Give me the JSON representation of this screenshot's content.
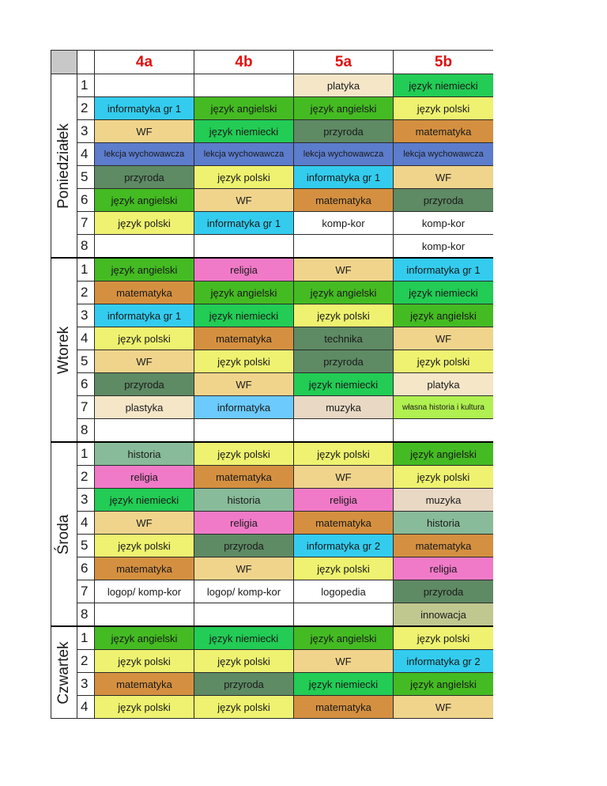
{
  "columns": [
    "4a",
    "4b",
    "5a",
    "5b"
  ],
  "colors": {
    "platyka": "#f5e6c8",
    "niemiecki": "#22cc55",
    "informatyka": "#33ccee",
    "angielski": "#44bb22",
    "polski": "#eef270",
    "wf": "#f0d48c",
    "przyroda": "#5e8a64",
    "matematyka": "#d49040",
    "wychowawcza": "#5c7ccc",
    "religia": "#f07ac8",
    "technika": "#5e8a64",
    "plastyka": "#f5e6c8",
    "informatyka_plain": "#6ccafc",
    "muzyka": "#e8d8c4",
    "wlasna": "#b0f050",
    "historia": "#88bb99",
    "innowacja": "#c0c890"
  },
  "days": [
    {
      "name": "Poniedziałek",
      "rows": [
        {
          "n": "1",
          "cells": [
            {
              "t": "",
              "c": ""
            },
            {
              "t": "",
              "c": ""
            },
            {
              "t": "platyka",
              "c": "platyka"
            },
            {
              "t": "język niemiecki",
              "c": "niemiecki"
            }
          ]
        },
        {
          "n": "2",
          "cells": [
            {
              "t": "informatyka gr 1",
              "c": "informatyka"
            },
            {
              "t": "język angielski",
              "c": "angielski"
            },
            {
              "t": "język angielski",
              "c": "angielski"
            },
            {
              "t": "język polski",
              "c": "polski"
            }
          ]
        },
        {
          "n": "3",
          "cells": [
            {
              "t": "WF",
              "c": "wf"
            },
            {
              "t": "język niemiecki",
              "c": "niemiecki"
            },
            {
              "t": "przyroda",
              "c": "przyroda"
            },
            {
              "t": "matematyka",
              "c": "matematyka"
            }
          ]
        },
        {
          "n": "4",
          "cells": [
            {
              "t": "lekcja wychowawcza",
              "c": "wychowawcza",
              "s": "small"
            },
            {
              "t": "lekcja wychowawcza",
              "c": "wychowawcza",
              "s": "small"
            },
            {
              "t": "lekcja wychowawcza",
              "c": "wychowawcza",
              "s": "small"
            },
            {
              "t": "lekcja wychowawcza",
              "c": "wychowawcza",
              "s": "small"
            }
          ]
        },
        {
          "n": "5",
          "cells": [
            {
              "t": "przyroda",
              "c": "przyroda"
            },
            {
              "t": "język polski",
              "c": "polski"
            },
            {
              "t": "informatyka gr 1",
              "c": "informatyka"
            },
            {
              "t": "WF",
              "c": "wf"
            }
          ]
        },
        {
          "n": "6",
          "cells": [
            {
              "t": "język angielski",
              "c": "angielski"
            },
            {
              "t": "WF",
              "c": "wf"
            },
            {
              "t": "matematyka",
              "c": "matematyka"
            },
            {
              "t": "przyroda",
              "c": "przyroda"
            }
          ]
        },
        {
          "n": "7",
          "cells": [
            {
              "t": "język polski",
              "c": "polski"
            },
            {
              "t": "informatyka gr 1",
              "c": "informatyka"
            },
            {
              "t": "komp-kor",
              "c": ""
            },
            {
              "t": "komp-kor",
              "c": ""
            }
          ]
        },
        {
          "n": "8",
          "cells": [
            {
              "t": "",
              "c": ""
            },
            {
              "t": "",
              "c": ""
            },
            {
              "t": "",
              "c": ""
            },
            {
              "t": "komp-kor",
              "c": ""
            }
          ]
        }
      ]
    },
    {
      "name": "Wtorek",
      "rows": [
        {
          "n": "1",
          "cells": [
            {
              "t": "język angielski",
              "c": "angielski"
            },
            {
              "t": "religia",
              "c": "religia"
            },
            {
              "t": "WF",
              "c": "wf"
            },
            {
              "t": "informatyka gr 1",
              "c": "informatyka"
            }
          ]
        },
        {
          "n": "2",
          "cells": [
            {
              "t": "matematyka",
              "c": "matematyka"
            },
            {
              "t": "język angielski",
              "c": "angielski"
            },
            {
              "t": "język angielski",
              "c": "angielski"
            },
            {
              "t": "język niemiecki",
              "c": "niemiecki"
            }
          ]
        },
        {
          "n": "3",
          "cells": [
            {
              "t": "informatyka gr 1",
              "c": "informatyka"
            },
            {
              "t": "język niemiecki",
              "c": "niemiecki"
            },
            {
              "t": "język polski",
              "c": "polski"
            },
            {
              "t": "język angielski",
              "c": "angielski"
            }
          ]
        },
        {
          "n": "4",
          "cells": [
            {
              "t": "język polski",
              "c": "polski"
            },
            {
              "t": "matematyka",
              "c": "matematyka"
            },
            {
              "t": "technika",
              "c": "technika"
            },
            {
              "t": "WF",
              "c": "wf"
            }
          ]
        },
        {
          "n": "5",
          "cells": [
            {
              "t": "WF",
              "c": "wf"
            },
            {
              "t": "język polski",
              "c": "polski"
            },
            {
              "t": "przyroda",
              "c": "przyroda"
            },
            {
              "t": "język polski",
              "c": "polski"
            }
          ]
        },
        {
          "n": "6",
          "cells": [
            {
              "t": "przyroda",
              "c": "przyroda"
            },
            {
              "t": "WF",
              "c": "wf"
            },
            {
              "t": "język niemiecki",
              "c": "niemiecki"
            },
            {
              "t": "platyka",
              "c": "platyka"
            }
          ]
        },
        {
          "n": "7",
          "cells": [
            {
              "t": "plastyka",
              "c": "plastyka"
            },
            {
              "t": "informatyka",
              "c": "informatyka_plain"
            },
            {
              "t": "muzyka",
              "c": "muzyka"
            },
            {
              "t": "własna historia i kultura",
              "c": "wlasna",
              "s": "tiny"
            }
          ]
        },
        {
          "n": "8",
          "cells": [
            {
              "t": "",
              "c": ""
            },
            {
              "t": "",
              "c": ""
            },
            {
              "t": "",
              "c": ""
            },
            {
              "t": "",
              "c": ""
            }
          ]
        }
      ]
    },
    {
      "name": "Środa",
      "rows": [
        {
          "n": "1",
          "cells": [
            {
              "t": "historia",
              "c": "historia"
            },
            {
              "t": "język polski",
              "c": "polski"
            },
            {
              "t": "język polski",
              "c": "polski"
            },
            {
              "t": "język angielski",
              "c": "angielski"
            }
          ]
        },
        {
          "n": "2",
          "cells": [
            {
              "t": "religia",
              "c": "religia"
            },
            {
              "t": "matematyka",
              "c": "matematyka"
            },
            {
              "t": "WF",
              "c": "wf"
            },
            {
              "t": "język polski",
              "c": "polski"
            }
          ]
        },
        {
          "n": "3",
          "cells": [
            {
              "t": "język niemiecki",
              "c": "niemiecki"
            },
            {
              "t": "historia",
              "c": "historia"
            },
            {
              "t": "religia",
              "c": "religia"
            },
            {
              "t": "muzyka",
              "c": "muzyka"
            }
          ]
        },
        {
          "n": "4",
          "cells": [
            {
              "t": "WF",
              "c": "wf"
            },
            {
              "t": "religia",
              "c": "religia"
            },
            {
              "t": "matematyka",
              "c": "matematyka"
            },
            {
              "t": "historia",
              "c": "historia"
            }
          ]
        },
        {
          "n": "5",
          "cells": [
            {
              "t": "język polski",
              "c": "polski"
            },
            {
              "t": "przyroda",
              "c": "przyroda"
            },
            {
              "t": "informatyka gr 2",
              "c": "informatyka"
            },
            {
              "t": "matematyka",
              "c": "matematyka"
            }
          ]
        },
        {
          "n": "6",
          "cells": [
            {
              "t": "matematyka",
              "c": "matematyka"
            },
            {
              "t": "WF",
              "c": "wf"
            },
            {
              "t": "język polski",
              "c": "polski"
            },
            {
              "t": "religia",
              "c": "religia"
            }
          ]
        },
        {
          "n": "7",
          "cells": [
            {
              "t": "logop/ komp-kor",
              "c": ""
            },
            {
              "t": "logop/ komp-kor",
              "c": ""
            },
            {
              "t": "logopedia",
              "c": ""
            },
            {
              "t": "przyroda",
              "c": "przyroda"
            }
          ]
        },
        {
          "n": "8",
          "cells": [
            {
              "t": "",
              "c": ""
            },
            {
              "t": "",
              "c": ""
            },
            {
              "t": "",
              "c": ""
            },
            {
              "t": "innowacja",
              "c": "innowacja"
            }
          ]
        }
      ]
    },
    {
      "name": "Czwartek",
      "rows": [
        {
          "n": "1",
          "cells": [
            {
              "t": "język angielski",
              "c": "angielski"
            },
            {
              "t": "język niemiecki",
              "c": "niemiecki"
            },
            {
              "t": "język angielski",
              "c": "angielski"
            },
            {
              "t": "język polski",
              "c": "polski"
            }
          ]
        },
        {
          "n": "2",
          "cells": [
            {
              "t": "język polski",
              "c": "polski"
            },
            {
              "t": "język polski",
              "c": "polski"
            },
            {
              "t": "WF",
              "c": "wf"
            },
            {
              "t": "informatyka gr 2",
              "c": "informatyka"
            }
          ]
        },
        {
          "n": "3",
          "cells": [
            {
              "t": "matematyka",
              "c": "matematyka"
            },
            {
              "t": "przyroda",
              "c": "przyroda"
            },
            {
              "t": "język niemiecki",
              "c": "niemiecki"
            },
            {
              "t": "język angielski",
              "c": "angielski"
            }
          ]
        },
        {
          "n": "4",
          "cells": [
            {
              "t": "język polski",
              "c": "polski"
            },
            {
              "t": "język polski",
              "c": "polski"
            },
            {
              "t": "matematyka",
              "c": "matematyka"
            },
            {
              "t": "WF",
              "c": "wf"
            }
          ]
        }
      ]
    }
  ]
}
